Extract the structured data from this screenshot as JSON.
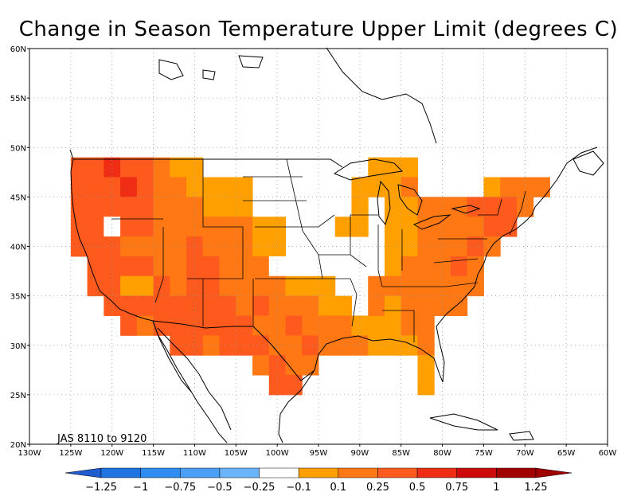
{
  "title": "Change in Season Temperature Upper Limit (degrees C)",
  "period_label": "JAS  8110  to  9120",
  "chart_data": {
    "type": "heatmap",
    "title": "Change in Season Temperature Upper Limit (degrees C)",
    "annotation": "JAS  8110  to  9120",
    "lon_ticks": [
      "130W",
      "125W",
      "120W",
      "115W",
      "110W",
      "105W",
      "100W",
      "95W",
      "90W",
      "85W",
      "80W",
      "75W",
      "70W",
      "65W",
      "60W"
    ],
    "lat_ticks": [
      "60N",
      "55N",
      "50N",
      "45N",
      "40N",
      "35N",
      "30N",
      "25N",
      "20N"
    ],
    "xlim": [
      -130,
      -60
    ],
    "ylim": [
      20,
      60
    ],
    "grid": true,
    "grid_resolution_deg": 2,
    "colorbar": {
      "labels": [
        "-1.25",
        "-1",
        "-0.75",
        "-0.5",
        "-0.25",
        "-0.1",
        "0.1",
        "0.25",
        "0.5",
        "0.75",
        "1",
        "1.25"
      ],
      "colors": [
        "#1e5ccf",
        "#1f74e2",
        "#2f8cf0",
        "#4aa0f7",
        "#6ab4fb",
        "#ffffff",
        "#ffa000",
        "#ff7814",
        "#ff5a1e",
        "#ef2d14",
        "#cd0a0a",
        "#a00000"
      ]
    },
    "cells": [
      {
        "lon": -124,
        "lat": 48,
        "v": 0.6
      },
      {
        "lon": -122,
        "lat": 48,
        "v": 0.6
      },
      {
        "lon": -120,
        "lat": 48,
        "v": 0.8
      },
      {
        "lon": -118,
        "lat": 48,
        "v": 0.6
      },
      {
        "lon": -116,
        "lat": 48,
        "v": 0.6
      },
      {
        "lon": -114,
        "lat": 48,
        "v": 0.4
      },
      {
        "lon": -112,
        "lat": 48,
        "v": 0.2
      },
      {
        "lon": -110,
        "lat": 48,
        "v": 0.2
      },
      {
        "lon": -124,
        "lat": 46,
        "v": 0.6
      },
      {
        "lon": -122,
        "lat": 46,
        "v": 0.7
      },
      {
        "lon": -120,
        "lat": 46,
        "v": 0.7
      },
      {
        "lon": -118,
        "lat": 46,
        "v": 0.9
      },
      {
        "lon": -116,
        "lat": 46,
        "v": 0.6
      },
      {
        "lon": -114,
        "lat": 46,
        "v": 0.4
      },
      {
        "lon": -112,
        "lat": 46,
        "v": 0.4
      },
      {
        "lon": -110,
        "lat": 46,
        "v": 0.2
      },
      {
        "lon": -108,
        "lat": 46,
        "v": 0.2
      },
      {
        "lon": -106,
        "lat": 46,
        "v": 0.2
      },
      {
        "lon": -104,
        "lat": 46,
        "v": 0.2
      },
      {
        "lon": -124,
        "lat": 44,
        "v": 0.6
      },
      {
        "lon": -122,
        "lat": 44,
        "v": 0.5
      },
      {
        "lon": -120,
        "lat": 44,
        "v": 0.5
      },
      {
        "lon": -118,
        "lat": 44,
        "v": 0.5
      },
      {
        "lon": -116,
        "lat": 44,
        "v": 0.6
      },
      {
        "lon": -114,
        "lat": 44,
        "v": 0.4
      },
      {
        "lon": -112,
        "lat": 44,
        "v": 0.4
      },
      {
        "lon": -110,
        "lat": 44,
        "v": 0.4
      },
      {
        "lon": -108,
        "lat": 44,
        "v": 0.2
      },
      {
        "lon": -106,
        "lat": 44,
        "v": 0.2
      },
      {
        "lon": -104,
        "lat": 44,
        "v": 0.2
      },
      {
        "lon": -124,
        "lat": 42,
        "v": 0.6
      },
      {
        "lon": -122,
        "lat": 42,
        "v": 0.5
      },
      {
        "lon": -120,
        "lat": 42,
        "v": 0.0
      },
      {
        "lon": -118,
        "lat": 42,
        "v": 0.5
      },
      {
        "lon": -116,
        "lat": 42,
        "v": 0.5
      },
      {
        "lon": -114,
        "lat": 42,
        "v": 0.4
      },
      {
        "lon": -112,
        "lat": 42,
        "v": 0.4
      },
      {
        "lon": -110,
        "lat": 42,
        "v": 0.4
      },
      {
        "lon": -108,
        "lat": 42,
        "v": 0.4
      },
      {
        "lon": -106,
        "lat": 42,
        "v": 0.4
      },
      {
        "lon": -104,
        "lat": 42,
        "v": 0.4
      },
      {
        "lon": -102,
        "lat": 42,
        "v": 0.2
      },
      {
        "lon": -100,
        "lat": 42,
        "v": 0.2
      },
      {
        "lon": -124,
        "lat": 40,
        "v": 0.5
      },
      {
        "lon": -122,
        "lat": 40,
        "v": 0.5
      },
      {
        "lon": -120,
        "lat": 40,
        "v": 0.5
      },
      {
        "lon": -118,
        "lat": 40,
        "v": 0.4
      },
      {
        "lon": -116,
        "lat": 40,
        "v": 0.4
      },
      {
        "lon": -114,
        "lat": 40,
        "v": 0.4
      },
      {
        "lon": -112,
        "lat": 40,
        "v": 0.4
      },
      {
        "lon": -110,
        "lat": 40,
        "v": 0.5
      },
      {
        "lon": -108,
        "lat": 40,
        "v": 0.4
      },
      {
        "lon": -106,
        "lat": 40,
        "v": 0.4
      },
      {
        "lon": -104,
        "lat": 40,
        "v": 0.4
      },
      {
        "lon": -102,
        "lat": 40,
        "v": 0.2
      },
      {
        "lon": -100,
        "lat": 40,
        "v": 0.2
      },
      {
        "lon": -122,
        "lat": 38,
        "v": 0.5
      },
      {
        "lon": -120,
        "lat": 38,
        "v": 0.5
      },
      {
        "lon": -118,
        "lat": 38,
        "v": 0.5
      },
      {
        "lon": -116,
        "lat": 38,
        "v": 0.5
      },
      {
        "lon": -114,
        "lat": 38,
        "v": 0.4
      },
      {
        "lon": -112,
        "lat": 38,
        "v": 0.4
      },
      {
        "lon": -110,
        "lat": 38,
        "v": 0.5
      },
      {
        "lon": -108,
        "lat": 38,
        "v": 0.6
      },
      {
        "lon": -106,
        "lat": 38,
        "v": 0.4
      },
      {
        "lon": -104,
        "lat": 38,
        "v": 0.4
      },
      {
        "lon": -102,
        "lat": 38,
        "v": 0.4
      },
      {
        "lon": -100,
        "lat": 38,
        "v": 0.0
      },
      {
        "lon": -98,
        "lat": 38,
        "v": 0.0
      },
      {
        "lon": -122,
        "lat": 36,
        "v": 0.5
      },
      {
        "lon": -120,
        "lat": 36,
        "v": 0.5
      },
      {
        "lon": -118,
        "lat": 36,
        "v": 0.2
      },
      {
        "lon": -116,
        "lat": 36,
        "v": 0.2
      },
      {
        "lon": -114,
        "lat": 36,
        "v": 0.5
      },
      {
        "lon": -112,
        "lat": 36,
        "v": 0.4
      },
      {
        "lon": -110,
        "lat": 36,
        "v": 0.5
      },
      {
        "lon": -108,
        "lat": 36,
        "v": 0.5
      },
      {
        "lon": -106,
        "lat": 36,
        "v": 0.4
      },
      {
        "lon": -104,
        "lat": 36,
        "v": 0.4
      },
      {
        "lon": -102,
        "lat": 36,
        "v": 0.4
      },
      {
        "lon": -100,
        "lat": 36,
        "v": 0.4
      },
      {
        "lon": -98,
        "lat": 36,
        "v": 0.2
      },
      {
        "lon": -96,
        "lat": 36,
        "v": 0.2
      },
      {
        "lon": -94,
        "lat": 36,
        "v": 0.2
      },
      {
        "lon": -120,
        "lat": 34,
        "v": 0.5
      },
      {
        "lon": -118,
        "lat": 34,
        "v": 0.5
      },
      {
        "lon": -116,
        "lat": 34,
        "v": 0.5
      },
      {
        "lon": -114,
        "lat": 34,
        "v": 0.6
      },
      {
        "lon": -112,
        "lat": 34,
        "v": 0.6
      },
      {
        "lon": -110,
        "lat": 34,
        "v": 0.5
      },
      {
        "lon": -108,
        "lat": 34,
        "v": 0.5
      },
      {
        "lon": -106,
        "lat": 34,
        "v": 0.5
      },
      {
        "lon": -104,
        "lat": 34,
        "v": 0.4
      },
      {
        "lon": -102,
        "lat": 34,
        "v": 0.5
      },
      {
        "lon": -100,
        "lat": 34,
        "v": 0.4
      },
      {
        "lon": -98,
        "lat": 34,
        "v": 0.4
      },
      {
        "lon": -96,
        "lat": 34,
        "v": 0.4
      },
      {
        "lon": -94,
        "lat": 34,
        "v": 0.2
      },
      {
        "lon": -92,
        "lat": 34,
        "v": 0.2
      },
      {
        "lon": -118,
        "lat": 32,
        "v": 0.5
      },
      {
        "lon": -116,
        "lat": 32,
        "v": 0.4
      },
      {
        "lon": -114,
        "lat": 32,
        "v": 0.5
      },
      {
        "lon": -112,
        "lat": 32,
        "v": 0.6
      },
      {
        "lon": -110,
        "lat": 32,
        "v": 0.6
      },
      {
        "lon": -108,
        "lat": 32,
        "v": 0.5
      },
      {
        "lon": -106,
        "lat": 32,
        "v": 0.5
      },
      {
        "lon": -104,
        "lat": 32,
        "v": 0.5
      },
      {
        "lon": -102,
        "lat": 32,
        "v": 0.4
      },
      {
        "lon": -100,
        "lat": 32,
        "v": 0.4
      },
      {
        "lon": -98,
        "lat": 32,
        "v": 0.5
      },
      {
        "lon": -96,
        "lat": 32,
        "v": 0.4
      },
      {
        "lon": -94,
        "lat": 32,
        "v": 0.4
      },
      {
        "lon": -92,
        "lat": 32,
        "v": 0.4
      },
      {
        "lon": -90,
        "lat": 32,
        "v": 0.2
      },
      {
        "lon": -88,
        "lat": 32,
        "v": 0.2
      },
      {
        "lon": -86,
        "lat": 32,
        "v": 0.2
      },
      {
        "lon": -84,
        "lat": 32,
        "v": 0.4
      },
      {
        "lon": -82,
        "lat": 32,
        "v": 0.4
      },
      {
        "lon": -112,
        "lat": 30,
        "v": 0.5
      },
      {
        "lon": -110,
        "lat": 30,
        "v": 0.5
      },
      {
        "lon": -108,
        "lat": 30,
        "v": 0.4
      },
      {
        "lon": -106,
        "lat": 30,
        "v": 0.5
      },
      {
        "lon": -104,
        "lat": 30,
        "v": 0.5
      },
      {
        "lon": -102,
        "lat": 30,
        "v": 0.5
      },
      {
        "lon": -100,
        "lat": 30,
        "v": 0.4
      },
      {
        "lon": -98,
        "lat": 30,
        "v": 0.4
      },
      {
        "lon": -96,
        "lat": 30,
        "v": 0.5
      },
      {
        "lon": -94,
        "lat": 30,
        "v": 0.4
      },
      {
        "lon": -92,
        "lat": 30,
        "v": 0.4
      },
      {
        "lon": -90,
        "lat": 30,
        "v": 0.4
      },
      {
        "lon": -88,
        "lat": 30,
        "v": 0.2
      },
      {
        "lon": -86,
        "lat": 30,
        "v": 0.2
      },
      {
        "lon": -84,
        "lat": 30,
        "v": 0.2
      },
      {
        "lon": -82,
        "lat": 30,
        "v": 0.4
      },
      {
        "lon": -102,
        "lat": 28,
        "v": 0.4
      },
      {
        "lon": -100,
        "lat": 28,
        "v": 0.5
      },
      {
        "lon": -98,
        "lat": 28,
        "v": 0.4
      },
      {
        "lon": -96,
        "lat": 28,
        "v": 0.4
      },
      {
        "lon": -82,
        "lat": 28,
        "v": 0.2
      },
      {
        "lon": -100,
        "lat": 26,
        "v": 0.5
      },
      {
        "lon": -98,
        "lat": 26,
        "v": 0.5
      },
      {
        "lon": -82,
        "lat": 26,
        "v": 0.2
      },
      {
        "lon": -88,
        "lat": 48,
        "v": 0.2
      },
      {
        "lon": -86,
        "lat": 48,
        "v": 0.2
      },
      {
        "lon": -84,
        "lat": 48,
        "v": 0.2
      },
      {
        "lon": -90,
        "lat": 46,
        "v": 0.2
      },
      {
        "lon": -88,
        "lat": 46,
        "v": 0.2
      },
      {
        "lon": -86,
        "lat": 46,
        "v": 0.2
      },
      {
        "lon": -84,
        "lat": 46,
        "v": 0.4
      },
      {
        "lon": -74,
        "lat": 46,
        "v": 0.2
      },
      {
        "lon": -72,
        "lat": 46,
        "v": 0.4
      },
      {
        "lon": -70,
        "lat": 46,
        "v": 0.4
      },
      {
        "lon": -68,
        "lat": 46,
        "v": 0.4
      },
      {
        "lon": -90,
        "lat": 44,
        "v": 0.2
      },
      {
        "lon": -86,
        "lat": 44,
        "v": 0.2
      },
      {
        "lon": -84,
        "lat": 44,
        "v": 0.2
      },
      {
        "lon": -82,
        "lat": 44,
        "v": 0.4
      },
      {
        "lon": -80,
        "lat": 44,
        "v": 0.4
      },
      {
        "lon": -78,
        "lat": 44,
        "v": 0.4
      },
      {
        "lon": -76,
        "lat": 44,
        "v": 0.5
      },
      {
        "lon": -74,
        "lat": 44,
        "v": 0.6
      },
      {
        "lon": -72,
        "lat": 44,
        "v": 0.5
      },
      {
        "lon": -70,
        "lat": 44,
        "v": 0.4
      },
      {
        "lon": -92,
        "lat": 42,
        "v": 0.2
      },
      {
        "lon": -90,
        "lat": 42,
        "v": 0.2
      },
      {
        "lon": -86,
        "lat": 42,
        "v": 0.2
      },
      {
        "lon": -84,
        "lat": 42,
        "v": 0.2
      },
      {
        "lon": -82,
        "lat": 42,
        "v": 0.4
      },
      {
        "lon": -80,
        "lat": 42,
        "v": 0.4
      },
      {
        "lon": -78,
        "lat": 42,
        "v": 0.4
      },
      {
        "lon": -76,
        "lat": 42,
        "v": 0.4
      },
      {
        "lon": -74,
        "lat": 42,
        "v": 0.5
      },
      {
        "lon": -72,
        "lat": 42,
        "v": 0.5
      },
      {
        "lon": -86,
        "lat": 40,
        "v": 0.2
      },
      {
        "lon": -84,
        "lat": 40,
        "v": 0.2
      },
      {
        "lon": -82,
        "lat": 40,
        "v": 0.4
      },
      {
        "lon": -80,
        "lat": 40,
        "v": 0.4
      },
      {
        "lon": -78,
        "lat": 40,
        "v": 0.4
      },
      {
        "lon": -76,
        "lat": 40,
        "v": 0.5
      },
      {
        "lon": -74,
        "lat": 40,
        "v": 0.4
      },
      {
        "lon": -86,
        "lat": 38,
        "v": 0.2
      },
      {
        "lon": -84,
        "lat": 38,
        "v": 0.4
      },
      {
        "lon": -82,
        "lat": 38,
        "v": 0.4
      },
      {
        "lon": -80,
        "lat": 38,
        "v": 0.4
      },
      {
        "lon": -78,
        "lat": 38,
        "v": 0.5
      },
      {
        "lon": -76,
        "lat": 38,
        "v": 0.4
      },
      {
        "lon": -88,
        "lat": 36,
        "v": 0.4
      },
      {
        "lon": -86,
        "lat": 36,
        "v": 0.4
      },
      {
        "lon": -84,
        "lat": 36,
        "v": 0.4
      },
      {
        "lon": -82,
        "lat": 36,
        "v": 0.4
      },
      {
        "lon": -80,
        "lat": 36,
        "v": 0.4
      },
      {
        "lon": -78,
        "lat": 36,
        "v": 0.4
      },
      {
        "lon": -76,
        "lat": 36,
        "v": 0.4
      },
      {
        "lon": -88,
        "lat": 34,
        "v": 0.4
      },
      {
        "lon": -86,
        "lat": 34,
        "v": 0.2
      },
      {
        "lon": -84,
        "lat": 34,
        "v": 0.4
      },
      {
        "lon": -82,
        "lat": 34,
        "v": 0.4
      },
      {
        "lon": -80,
        "lat": 34,
        "v": 0.4
      },
      {
        "lon": -78,
        "lat": 34,
        "v": 0.4
      }
    ]
  }
}
